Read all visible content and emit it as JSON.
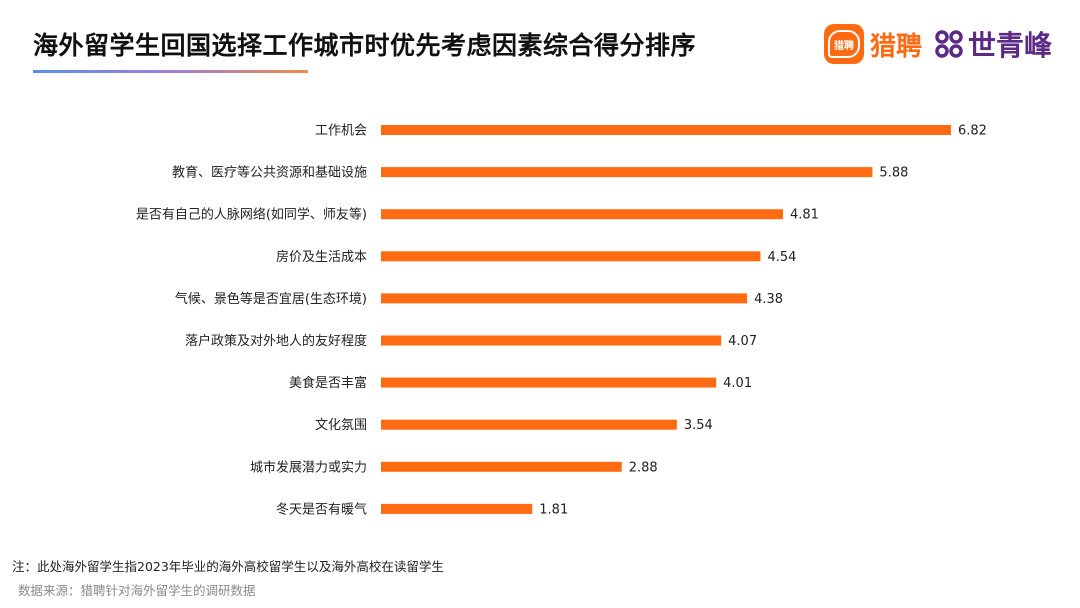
{
  "header": {
    "title": "海外留学生回国选择工作城市时优先考虑因素综合得分排序",
    "logo_liepin_text": "猎聘",
    "logo_liepin_icon_text": "猎聘",
    "logo_sqf_text": "世青峰"
  },
  "footer": {
    "note": "注：此处海外留学生指2023年毕业的海外高校留学生以及海外高校在读留学生",
    "source": "数据来源：猎聘针对海外留学生的调研数据"
  },
  "colors": {
    "bar": "#ff6a13",
    "liepin_orange": "#ff6a13",
    "sqf_purple": "#5b2a86"
  },
  "icons": {
    "liepin": "liepin-logo-icon",
    "sqf": "shiqingfeng-logo-icon"
  },
  "chart_data": {
    "type": "bar",
    "orientation": "horizontal",
    "categories": [
      "工作机会",
      "教育、医疗等公共资源和基础设施",
      "是否有自己的人脉网络(如同学、师友等)",
      "房价及生活成本",
      "气候、景色等是否宜居(生态环境)",
      "落户政策及对外地人的友好程度",
      "美食是否丰富",
      "文化氛围",
      "城市发展潜力或实力",
      "冬天是否有暖气"
    ],
    "values": [
      6.82,
      5.88,
      4.81,
      4.54,
      4.38,
      4.07,
      4.01,
      3.54,
      2.88,
      1.81
    ],
    "value_labels": [
      "6.82",
      "5.88",
      "4.81",
      "4.54",
      "4.38",
      "4.07",
      "4.01",
      "3.54",
      "2.88",
      "1.81"
    ],
    "title": "海外留学生回国选择工作城市时优先考虑因素综合得分排序",
    "xlabel": "",
    "ylabel": "",
    "xlim": [
      0,
      6.82
    ],
    "grid": false,
    "legend": "none"
  }
}
